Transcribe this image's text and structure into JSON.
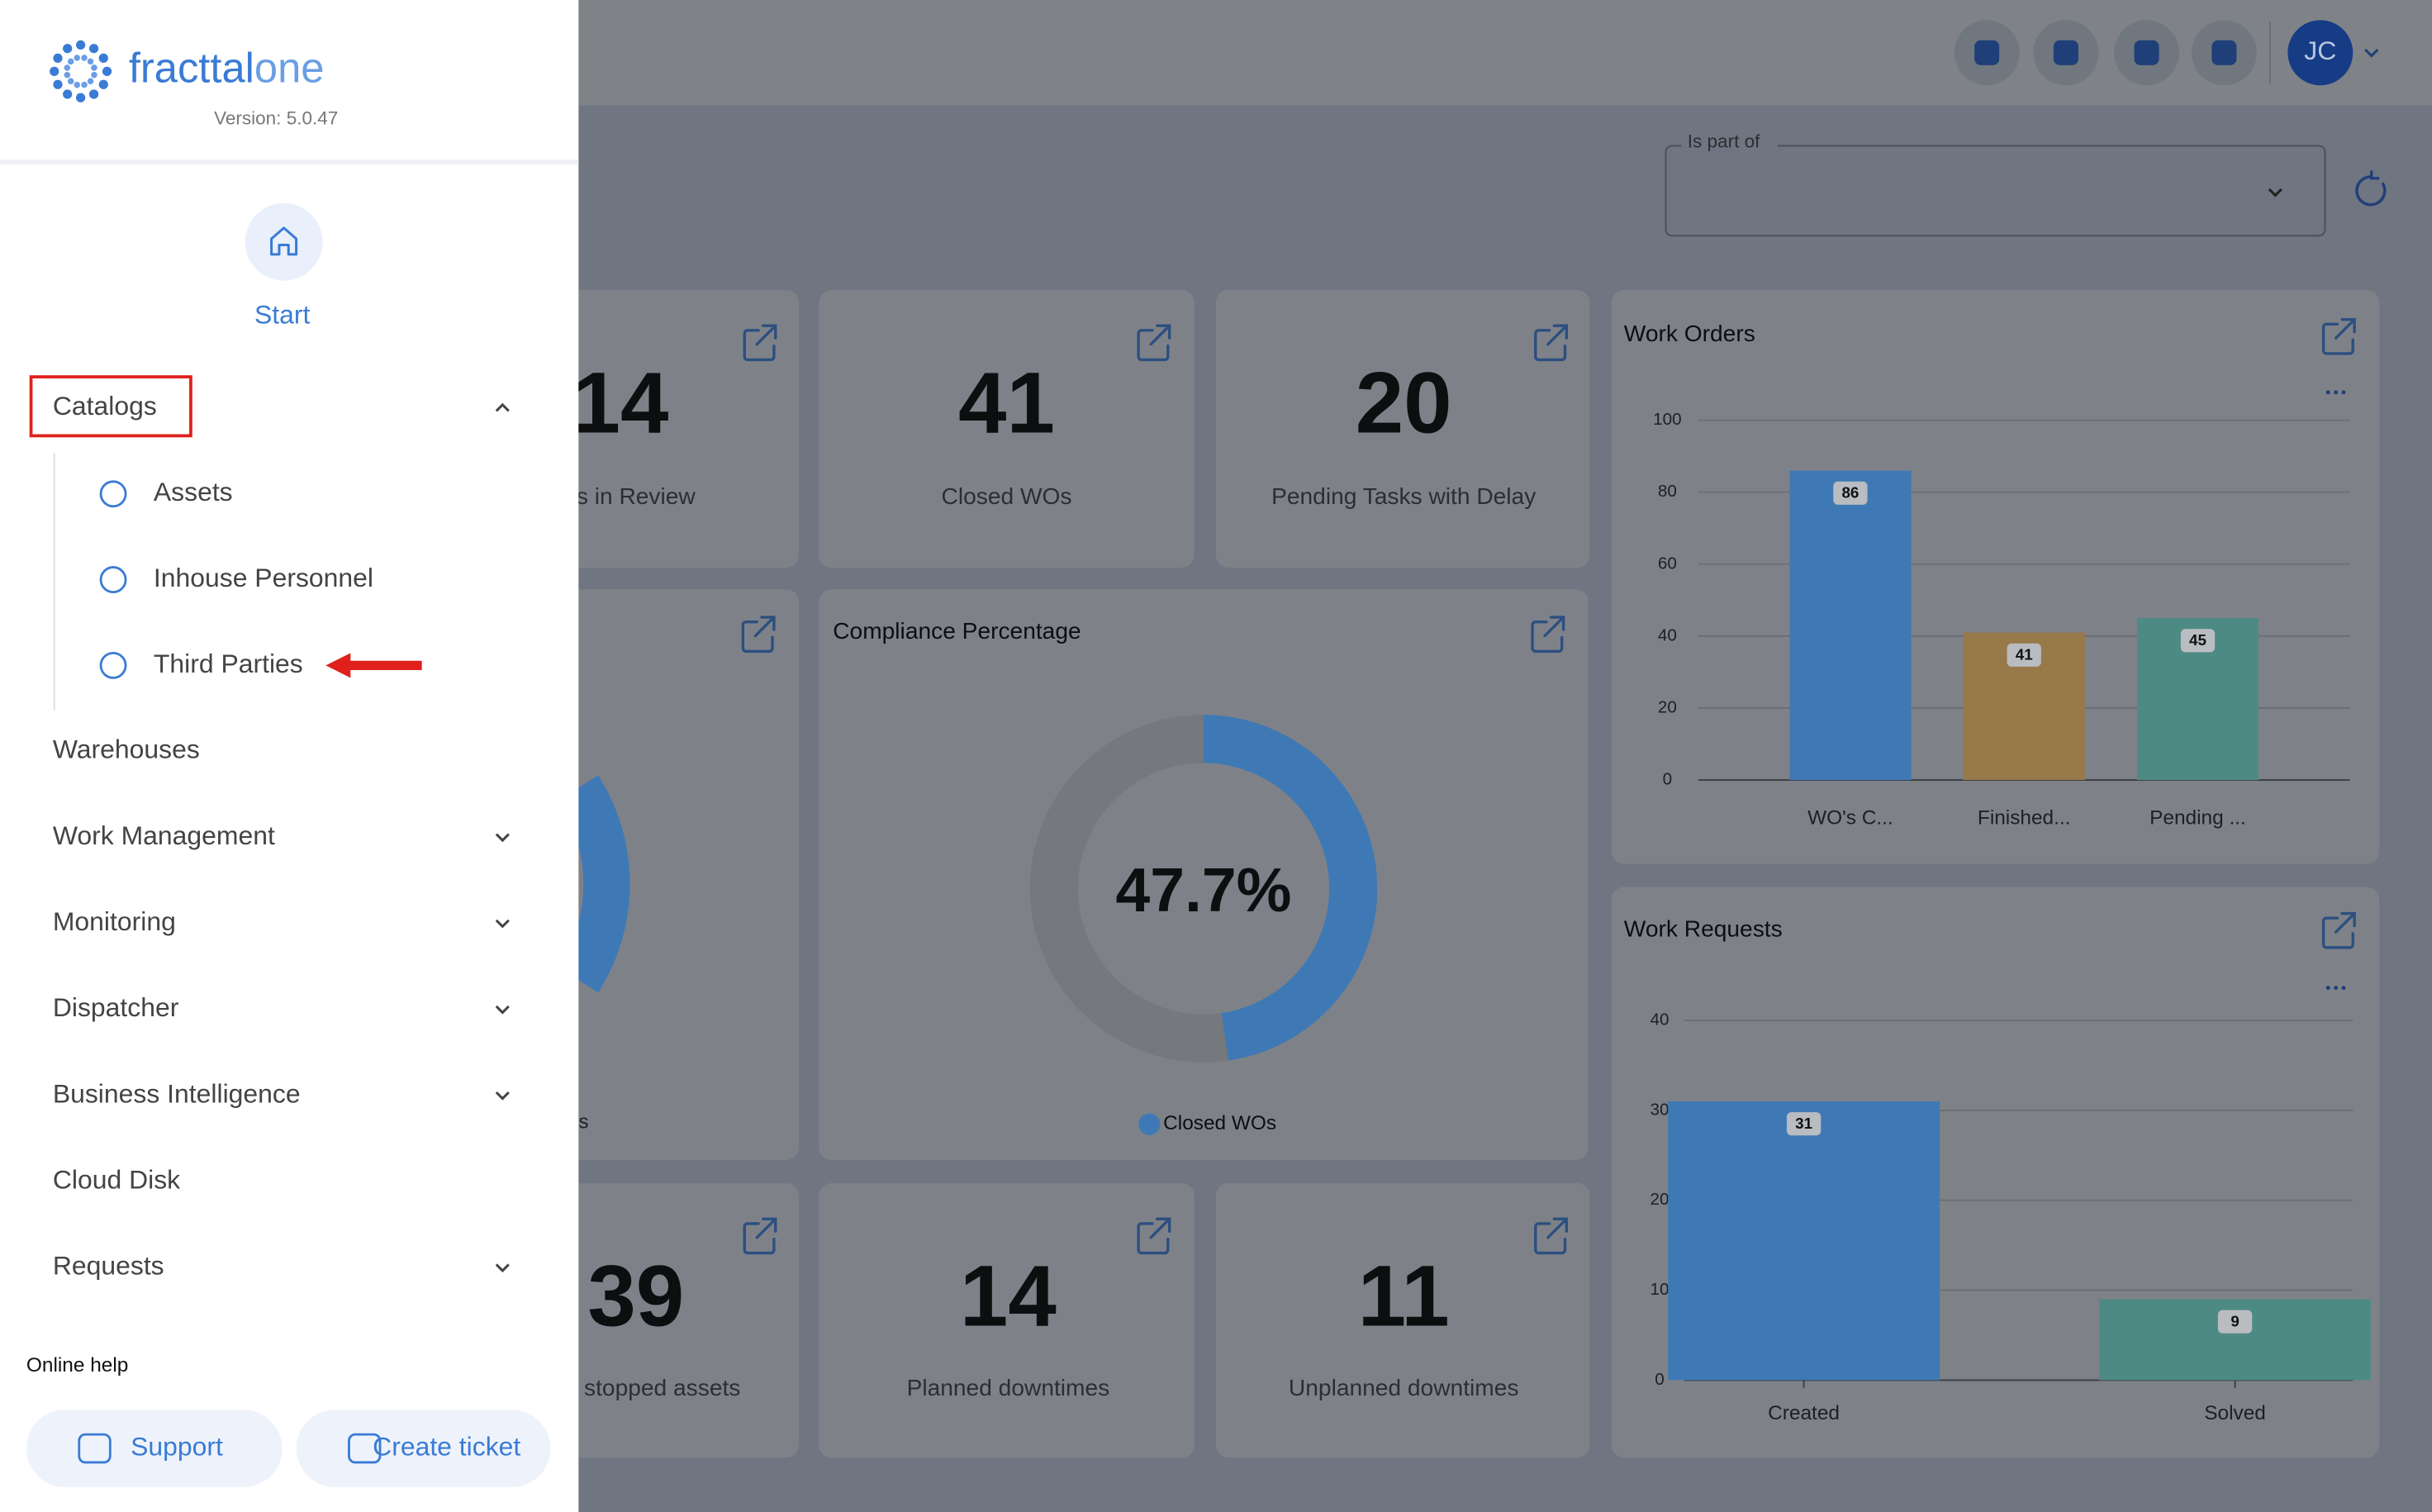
{
  "sidebar": {
    "brand": "fracttal",
    "brand_suffix": "one",
    "version": "Version: 5.0.47",
    "start": "Start",
    "menu": [
      {
        "label": "Catalogs",
        "has_submenu": true,
        "expanded": true,
        "children": [
          "Assets",
          "Inhouse Personnel",
          "Third Parties"
        ]
      },
      {
        "label": "Warehouses",
        "has_submenu": false
      },
      {
        "label": "Work Management",
        "has_submenu": true
      },
      {
        "label": "Monitoring",
        "has_submenu": true
      },
      {
        "label": "Dispatcher",
        "has_submenu": true
      },
      {
        "label": "Business Intelligence",
        "has_submenu": true
      },
      {
        "label": "Cloud Disk",
        "has_submenu": false
      },
      {
        "label": "Requests",
        "has_submenu": true
      }
    ],
    "help": "Online help",
    "buttons": [
      "Support",
      "Create ticket"
    ]
  },
  "header": {
    "avatar": "JC"
  },
  "filter": {
    "label": "Is part of"
  },
  "kpis": [
    {
      "value": 14,
      "label": "s in Review"
    },
    {
      "value": 41,
      "label": "Closed WOs"
    },
    {
      "value": 20,
      "label": "Pending Tasks with Delay"
    },
    {
      "value": 39,
      "label": "stopped assets"
    },
    {
      "value": 14,
      "label": "Planned downtimes"
    },
    {
      "value": 11,
      "label": "Unplanned downtimes"
    }
  ],
  "partial_card": {
    "label": "s"
  },
  "chart_data": [
    {
      "type": "bar",
      "title": "Work Orders",
      "categories": [
        "WO's C...",
        "Finished...",
        "Pending ..."
      ],
      "values": [
        86,
        41,
        45
      ],
      "colors": [
        "#3f79b5",
        "#97794a",
        "#4e8a84"
      ],
      "ylim": [
        0,
        100
      ],
      "yticks": [
        0,
        20,
        40,
        60,
        80,
        100
      ],
      "grid": true
    },
    {
      "type": "donut",
      "title": "Compliance Percentage",
      "values": [
        47.7
      ],
      "value_labels": [
        "47.7%"
      ],
      "legend": [
        "Closed WOs"
      ],
      "color": "#3f79b5"
    },
    {
      "type": "bar",
      "title": "Work Requests",
      "categories": [
        "Created",
        "Solved"
      ],
      "values": [
        31,
        9
      ],
      "colors": [
        "#3f79b5",
        "#4e8a84"
      ],
      "ylim": [
        0,
        40
      ],
      "yticks": [
        0,
        10,
        20,
        30,
        40
      ],
      "grid": true
    }
  ]
}
